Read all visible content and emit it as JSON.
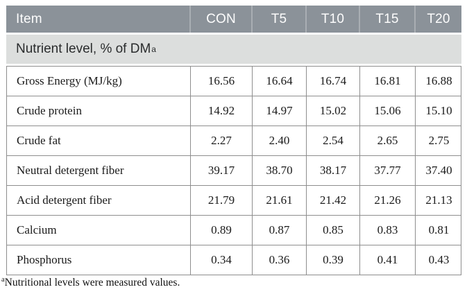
{
  "colors": {
    "header_bg": "#8b9299",
    "header_divider": "#a9aeb3",
    "section_bg": "#dcdedd",
    "body_border": "#8e8e8e",
    "header_text": "#fdfdfd",
    "body_text": "#1a1a1a"
  },
  "table": {
    "columns": [
      "Item",
      "CON",
      "T5",
      "T10",
      "T15",
      "T20"
    ],
    "section_header": {
      "text": "Nutrient level, % of DM",
      "sup": "a"
    },
    "rows": [
      {
        "item": "Gross Energy (MJ/kg)",
        "values": [
          "16.56",
          "16.64",
          "16.74",
          "16.81",
          "16.88"
        ]
      },
      {
        "item": "Crude protein",
        "values": [
          "14.92",
          "14.97",
          "15.02",
          "15.06",
          "15.10"
        ]
      },
      {
        "item": "Crude fat",
        "values": [
          "2.27",
          "2.40",
          "2.54",
          "2.65",
          "2.75"
        ]
      },
      {
        "item": "Neutral detergent fiber",
        "values": [
          "39.17",
          "38.70",
          "38.17",
          "37.77",
          "37.40"
        ]
      },
      {
        "item": "Acid detergent fiber",
        "values": [
          "21.79",
          "21.61",
          "21.42",
          "21.26",
          "21.13"
        ]
      },
      {
        "item": "Calcium",
        "values": [
          "0.89",
          "0.87",
          "0.85",
          "0.83",
          "0.81"
        ]
      },
      {
        "item": "Phosphorus",
        "values": [
          "0.34",
          "0.36",
          "0.39",
          "0.41",
          "0.43"
        ]
      }
    ]
  },
  "footnote": {
    "sup": "a",
    "text": "Nutritional levels were measured values."
  }
}
